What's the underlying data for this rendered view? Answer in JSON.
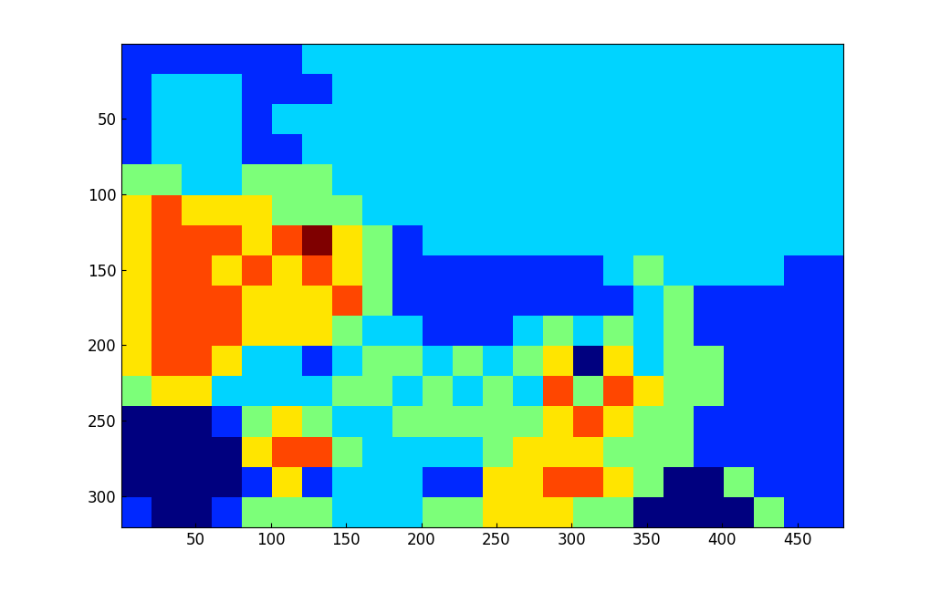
{
  "chart_data": {
    "type": "heatmap",
    "xlim": [
      0.5,
      480.5
    ],
    "ylim": [
      320.5,
      0.5
    ],
    "xticks": [
      50,
      100,
      150,
      200,
      250,
      300,
      350,
      400,
      450
    ],
    "yticks": [
      50,
      100,
      150,
      200,
      250,
      300
    ],
    "clim": [
      0,
      6
    ],
    "cells": [
      [
        1,
        1,
        1,
        1,
        1,
        1,
        2,
        2,
        2,
        2,
        2,
        2,
        2,
        2,
        2,
        2,
        2,
        2,
        2,
        2,
        2,
        2,
        2,
        2
      ],
      [
        1,
        2,
        2,
        2,
        1,
        1,
        1,
        2,
        2,
        2,
        2,
        2,
        2,
        2,
        2,
        2,
        2,
        2,
        2,
        2,
        2,
        2,
        2,
        2
      ],
      [
        1,
        2,
        2,
        2,
        1,
        2,
        2,
        2,
        2,
        2,
        2,
        2,
        2,
        2,
        2,
        2,
        2,
        2,
        2,
        2,
        2,
        2,
        2,
        2
      ],
      [
        1,
        2,
        2,
        2,
        1,
        1,
        2,
        2,
        2,
        2,
        2,
        2,
        2,
        2,
        2,
        2,
        2,
        2,
        2,
        2,
        2,
        2,
        2,
        2
      ],
      [
        3,
        3,
        2,
        2,
        3,
        3,
        3,
        2,
        2,
        2,
        2,
        2,
        2,
        2,
        2,
        2,
        2,
        2,
        2,
        2,
        2,
        2,
        2,
        2
      ],
      [
        4,
        5,
        4,
        4,
        4,
        3,
        3,
        3,
        2,
        2,
        2,
        2,
        2,
        2,
        2,
        2,
        2,
        2,
        2,
        2,
        2,
        2,
        2,
        2
      ],
      [
        4,
        5,
        5,
        5,
        4,
        5,
        6,
        4,
        3,
        1,
        2,
        2,
        2,
        2,
        2,
        2,
        2,
        2,
        2,
        2,
        2,
        2,
        2,
        2
      ],
      [
        4,
        5,
        5,
        4,
        5,
        4,
        5,
        4,
        3,
        1,
        1,
        1,
        1,
        1,
        1,
        1,
        2,
        3,
        2,
        2,
        2,
        2,
        1,
        1
      ],
      [
        4,
        5,
        5,
        5,
        4,
        4,
        4,
        5,
        3,
        1,
        1,
        1,
        1,
        1,
        1,
        1,
        1,
        2,
        3,
        1,
        1,
        1,
        1,
        1
      ],
      [
        4,
        5,
        5,
        5,
        4,
        4,
        4,
        3,
        2,
        2,
        1,
        1,
        1,
        2,
        3,
        2,
        3,
        2,
        3,
        1,
        1,
        1,
        1,
        1
      ],
      [
        4,
        5,
        5,
        4,
        2,
        2,
        1,
        2,
        3,
        3,
        2,
        3,
        2,
        3,
        4,
        0,
        4,
        2,
        3,
        3,
        1,
        1,
        1,
        1
      ],
      [
        3,
        4,
        4,
        2,
        2,
        2,
        2,
        3,
        3,
        2,
        3,
        2,
        3,
        2,
        5,
        3,
        5,
        4,
        3,
        3,
        1,
        1,
        1,
        1
      ],
      [
        0,
        0,
        0,
        1,
        3,
        4,
        3,
        2,
        2,
        3,
        3,
        3,
        3,
        3,
        4,
        5,
        4,
        3,
        3,
        1,
        1,
        1,
        1,
        1
      ],
      [
        0,
        0,
        0,
        0,
        4,
        5,
        5,
        3,
        2,
        2,
        2,
        2,
        3,
        4,
        4,
        4,
        3,
        3,
        3,
        1,
        1,
        1,
        1,
        1
      ],
      [
        0,
        0,
        0,
        0,
        1,
        4,
        1,
        2,
        2,
        2,
        1,
        1,
        4,
        4,
        5,
        5,
        4,
        3,
        0,
        0,
        3,
        1,
        1,
        1
      ],
      [
        1,
        0,
        0,
        1,
        3,
        3,
        3,
        2,
        2,
        2,
        3,
        3,
        4,
        4,
        4,
        3,
        3,
        0,
        0,
        0,
        0,
        3,
        1,
        1
      ]
    ]
  }
}
